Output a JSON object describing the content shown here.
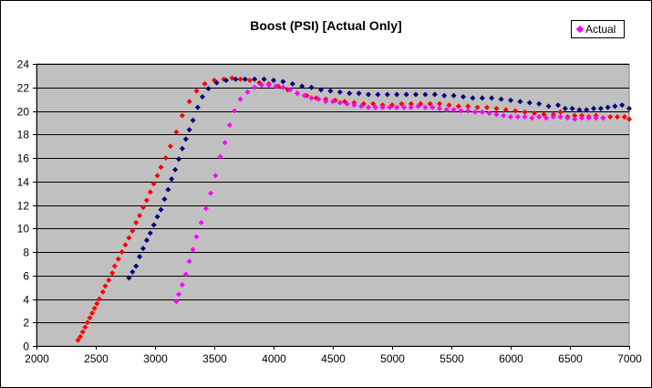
{
  "chart_data": {
    "type": "scatter",
    "title": "Boost (PSI) [Actual Only]",
    "xlabel": "",
    "ylabel": "",
    "xlim": [
      2000,
      7000
    ],
    "ylim": [
      0,
      24
    ],
    "xticks": [
      2000,
      2500,
      3000,
      3500,
      4000,
      4500,
      5000,
      5500,
      6000,
      6500,
      7000
    ],
    "yticks": [
      0,
      2,
      4,
      6,
      8,
      10,
      12,
      14,
      16,
      18,
      20,
      22,
      24
    ],
    "grid": "horizontal",
    "plot_background": "#c0c0c0",
    "legend": {
      "position": "top-right",
      "entries": [
        {
          "label": "Actual",
          "color": "#ff00ff"
        }
      ]
    },
    "series": [
      {
        "color": "#ff0000",
        "points": [
          [
            2350,
            0.5
          ],
          [
            2370,
            0.8
          ],
          [
            2390,
            1.2
          ],
          [
            2410,
            1.6
          ],
          [
            2430,
            2.0
          ],
          [
            2450,
            2.4
          ],
          [
            2470,
            2.8
          ],
          [
            2490,
            3.2
          ],
          [
            2510,
            3.6
          ],
          [
            2530,
            4.0
          ],
          [
            2560,
            4.6
          ],
          [
            2580,
            5.1
          ],
          [
            2610,
            5.6
          ],
          [
            2640,
            6.2
          ],
          [
            2660,
            6.8
          ],
          [
            2690,
            7.4
          ],
          [
            2720,
            8.0
          ],
          [
            2750,
            8.6
          ],
          [
            2780,
            9.2
          ],
          [
            2810,
            9.8
          ],
          [
            2840,
            10.5
          ],
          [
            2870,
            11.1
          ],
          [
            2900,
            11.8
          ],
          [
            2930,
            12.4
          ],
          [
            2960,
            13.1
          ],
          [
            2990,
            13.8
          ],
          [
            3020,
            14.5
          ],
          [
            3050,
            15.2
          ],
          [
            3090,
            16.0
          ],
          [
            3130,
            17.0
          ],
          [
            3180,
            18.2
          ],
          [
            3230,
            19.6
          ],
          [
            3290,
            20.8
          ],
          [
            3350,
            21.7
          ],
          [
            3420,
            22.3
          ],
          [
            3500,
            22.6
          ],
          [
            3580,
            22.7
          ],
          [
            3650,
            22.8
          ],
          [
            3720,
            22.7
          ],
          [
            3800,
            22.6
          ],
          [
            3880,
            22.4
          ],
          [
            3960,
            22.3
          ],
          [
            4040,
            22.1
          ],
          [
            4120,
            21.8
          ],
          [
            4200,
            21.5
          ],
          [
            4280,
            21.3
          ],
          [
            4360,
            21.1
          ],
          [
            4440,
            21.0
          ],
          [
            4520,
            20.9
          ],
          [
            4600,
            20.8
          ],
          [
            4680,
            20.7
          ],
          [
            4760,
            20.6
          ],
          [
            4840,
            20.6
          ],
          [
            4920,
            20.5
          ],
          [
            5000,
            20.5
          ],
          [
            5080,
            20.6
          ],
          [
            5160,
            20.6
          ],
          [
            5240,
            20.6
          ],
          [
            5320,
            20.6
          ],
          [
            5400,
            20.6
          ],
          [
            5480,
            20.5
          ],
          [
            5560,
            20.4
          ],
          [
            5640,
            20.4
          ],
          [
            5720,
            20.3
          ],
          [
            5800,
            20.3
          ],
          [
            5880,
            20.2
          ],
          [
            5960,
            20.1
          ],
          [
            6040,
            20.0
          ],
          [
            6120,
            19.9
          ],
          [
            6200,
            19.8
          ],
          [
            6280,
            19.7
          ],
          [
            6360,
            19.7
          ],
          [
            6420,
            19.9
          ],
          [
            6480,
            19.5
          ],
          [
            6540,
            19.6
          ],
          [
            6600,
            19.6
          ],
          [
            6660,
            19.5
          ],
          [
            6720,
            19.6
          ],
          [
            6780,
            19.4
          ],
          [
            6840,
            19.5
          ],
          [
            6900,
            19.5
          ],
          [
            6960,
            19.5
          ],
          [
            7000,
            19.3
          ]
        ]
      },
      {
        "color": "#000080",
        "points": [
          [
            2780,
            5.8
          ],
          [
            2810,
            6.3
          ],
          [
            2840,
            6.8
          ],
          [
            2870,
            7.6
          ],
          [
            2900,
            8.3
          ],
          [
            2930,
            9.0
          ],
          [
            2960,
            9.6
          ],
          [
            2990,
            10.3
          ],
          [
            3020,
            11.0
          ],
          [
            3050,
            11.6
          ],
          [
            3080,
            12.5
          ],
          [
            3110,
            13.3
          ],
          [
            3140,
            14.2
          ],
          [
            3170,
            15.0
          ],
          [
            3200,
            15.9
          ],
          [
            3230,
            16.8
          ],
          [
            3260,
            17.6
          ],
          [
            3290,
            18.4
          ],
          [
            3320,
            19.2
          ],
          [
            3360,
            20.3
          ],
          [
            3400,
            21.2
          ],
          [
            3450,
            21.9
          ],
          [
            3520,
            22.4
          ],
          [
            3600,
            22.6
          ],
          [
            3680,
            22.7
          ],
          [
            3760,
            22.7
          ],
          [
            3840,
            22.7
          ],
          [
            3920,
            22.7
          ],
          [
            4000,
            22.6
          ],
          [
            4080,
            22.5
          ],
          [
            4160,
            22.3
          ],
          [
            4240,
            22.1
          ],
          [
            4320,
            22.0
          ],
          [
            4400,
            21.8
          ],
          [
            4480,
            21.7
          ],
          [
            4560,
            21.6
          ],
          [
            4640,
            21.5
          ],
          [
            4720,
            21.5
          ],
          [
            4800,
            21.4
          ],
          [
            4880,
            21.4
          ],
          [
            4960,
            21.4
          ],
          [
            5040,
            21.4
          ],
          [
            5120,
            21.4
          ],
          [
            5200,
            21.4
          ],
          [
            5280,
            21.4
          ],
          [
            5360,
            21.4
          ],
          [
            5440,
            21.3
          ],
          [
            5520,
            21.3
          ],
          [
            5600,
            21.2
          ],
          [
            5680,
            21.1
          ],
          [
            5760,
            21.1
          ],
          [
            5840,
            21.1
          ],
          [
            5920,
            21.0
          ],
          [
            6000,
            20.9
          ],
          [
            6080,
            20.8
          ],
          [
            6160,
            20.7
          ],
          [
            6240,
            20.6
          ],
          [
            6320,
            20.4
          ],
          [
            6400,
            20.5
          ],
          [
            6460,
            20.2
          ],
          [
            6520,
            20.2
          ],
          [
            6580,
            20.1
          ],
          [
            6640,
            20.1
          ],
          [
            6700,
            20.2
          ],
          [
            6760,
            20.2
          ],
          [
            6820,
            20.3
          ],
          [
            6880,
            20.4
          ],
          [
            6940,
            20.5
          ],
          [
            7000,
            20.2
          ]
        ]
      },
      {
        "color": "#ff00ff",
        "points": [
          [
            3180,
            3.8
          ],
          [
            3200,
            4.4
          ],
          [
            3230,
            5.2
          ],
          [
            3260,
            6.1
          ],
          [
            3290,
            7.2
          ],
          [
            3320,
            8.2
          ],
          [
            3350,
            9.3
          ],
          [
            3390,
            10.5
          ],
          [
            3430,
            11.7
          ],
          [
            3470,
            13.0
          ],
          [
            3510,
            14.5
          ],
          [
            3550,
            16.1
          ],
          [
            3590,
            17.3
          ],
          [
            3630,
            18.8
          ],
          [
            3670,
            20.0
          ],
          [
            3720,
            21.0
          ],
          [
            3780,
            21.6
          ],
          [
            3840,
            22.0
          ],
          [
            3900,
            22.2
          ],
          [
            3960,
            22.2
          ],
          [
            4020,
            22.1
          ],
          [
            4080,
            22.0
          ],
          [
            4140,
            21.8
          ],
          [
            4200,
            21.5
          ],
          [
            4260,
            21.3
          ],
          [
            4320,
            21.1
          ],
          [
            4380,
            21.0
          ],
          [
            4440,
            20.8
          ],
          [
            4500,
            20.8
          ],
          [
            4560,
            20.7
          ],
          [
            4620,
            20.6
          ],
          [
            4680,
            20.5
          ],
          [
            4740,
            20.4
          ],
          [
            4800,
            20.3
          ],
          [
            4860,
            20.3
          ],
          [
            4920,
            20.3
          ],
          [
            4980,
            20.3
          ],
          [
            5040,
            20.3
          ],
          [
            5100,
            20.3
          ],
          [
            5160,
            20.3
          ],
          [
            5220,
            20.4
          ],
          [
            5280,
            20.3
          ],
          [
            5340,
            20.3
          ],
          [
            5400,
            20.2
          ],
          [
            5460,
            20.1
          ],
          [
            5520,
            20.1
          ],
          [
            5580,
            20.0
          ],
          [
            5640,
            20.0
          ],
          [
            5700,
            19.9
          ],
          [
            5760,
            19.9
          ],
          [
            5820,
            19.8
          ],
          [
            5880,
            19.7
          ],
          [
            5940,
            19.6
          ],
          [
            6000,
            19.5
          ],
          [
            6060,
            19.5
          ],
          [
            6120,
            19.5
          ],
          [
            6180,
            19.4
          ],
          [
            6240,
            19.5
          ],
          [
            6300,
            19.4
          ],
          [
            6360,
            19.5
          ],
          [
            6420,
            19.5
          ],
          [
            6480,
            19.4
          ],
          [
            6540,
            19.3
          ],
          [
            6600,
            19.4
          ],
          [
            6660,
            19.4
          ],
          [
            6720,
            19.4
          ],
          [
            6780,
            19.4
          ]
        ]
      }
    ]
  }
}
